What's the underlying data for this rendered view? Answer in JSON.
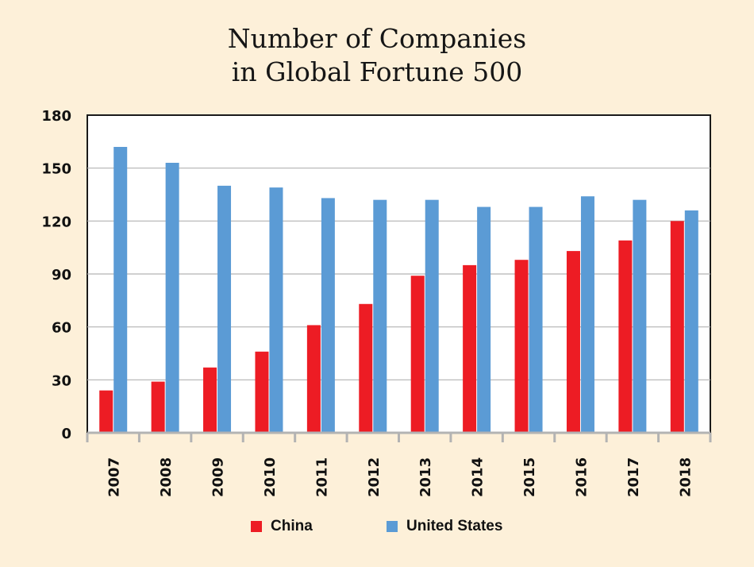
{
  "chart_data": {
    "type": "bar",
    "title_lines": [
      "Number of Companies",
      "in Global Fortune 500"
    ],
    "xlabel": "",
    "ylabel": "",
    "categories": [
      "2007",
      "2008",
      "2009",
      "2010",
      "2011",
      "2012",
      "2013",
      "2014",
      "2015",
      "2016",
      "2017",
      "2018"
    ],
    "series": [
      {
        "name": "China",
        "color": "#ed1c24",
        "values": [
          24,
          29,
          37,
          46,
          61,
          73,
          89,
          95,
          98,
          103,
          109,
          120
        ]
      },
      {
        "name": "United States",
        "color": "#5b9bd5",
        "values": [
          162,
          153,
          140,
          139,
          133,
          132,
          132,
          128,
          128,
          134,
          132,
          126
        ]
      }
    ],
    "ylim": [
      0,
      180
    ],
    "yticks": [
      "0",
      "30",
      "60",
      "90",
      "120",
      "150",
      "180"
    ],
    "grid": true,
    "legend_position": "bottom"
  }
}
